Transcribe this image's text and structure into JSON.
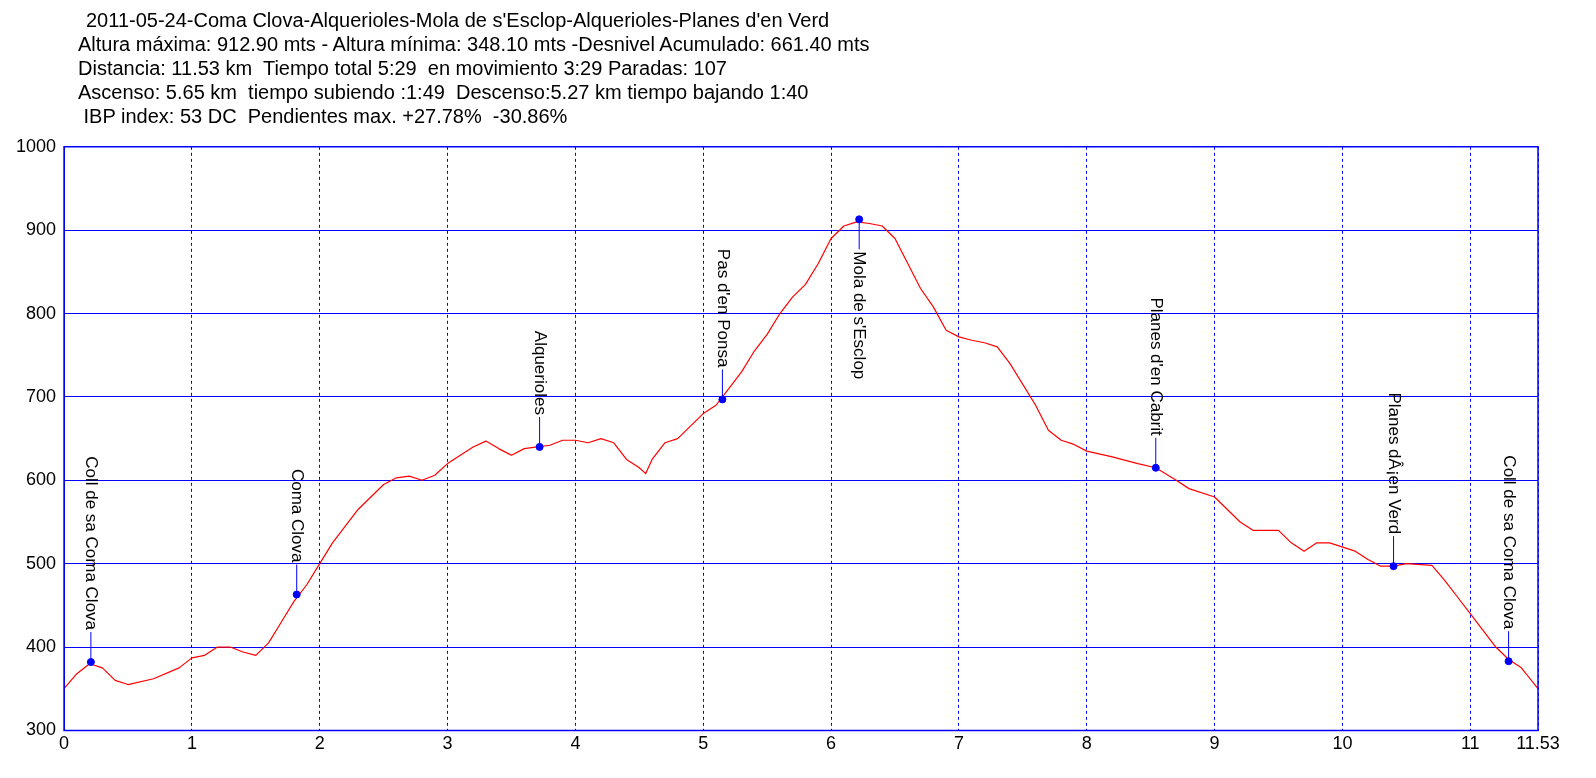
{
  "chart_data": {
    "type": "line",
    "title": "2011-05-24-Coma Clova-Alquerioles-Mola de s'Esclop-Alquerioles-Planes d'en Verd",
    "subtitle": "Altura máxima: 912.90 mts - Altura mínima: 348.10 mts -Desnivel Acumulado: 661.40 mts\nDistancia: 11.53 km  Tiempo total 5:29  en movimiento 3:29 Paradas: 107\nAscenso: 5.65 km  tiempo subiendo :1:49  Descenso:5.27 km tiempo bajando 1:40\n IBP index: 53 DC  Pendientes max. +27.78%  -30.86%",
    "series": [
      {
        "type": "line",
        "color": "#ff0000",
        "x": [
          0,
          0.1,
          0.2,
          0.3,
          0.4,
          0.5,
          0.7,
          0.9,
          1.0,
          1.1,
          1.2,
          1.3,
          1.4,
          1.5,
          1.6,
          1.7,
          1.8,
          1.9,
          2.0,
          2.1,
          2.2,
          2.3,
          2.4,
          2.5,
          2.6,
          2.7,
          2.8,
          2.9,
          3.0,
          3.1,
          3.2,
          3.3,
          3.4,
          3.5,
          3.6,
          3.7,
          3.8,
          3.9,
          4.0,
          4.1,
          4.2,
          4.3,
          4.4,
          4.5,
          4.55,
          4.6,
          4.7,
          4.8,
          4.9,
          5.0,
          5.1,
          5.2,
          5.3,
          5.4,
          5.5,
          5.6,
          5.7,
          5.8,
          5.9,
          6.0,
          6.1,
          6.2,
          6.3,
          6.4,
          6.5,
          6.6,
          6.7,
          6.8,
          6.9,
          7.0,
          7.1,
          7.2,
          7.3,
          7.4,
          7.5,
          7.6,
          7.7,
          7.8,
          7.9,
          8.0,
          8.2,
          8.4,
          8.54,
          8.7,
          8.8,
          9.0,
          9.1,
          9.2,
          9.3,
          9.5,
          9.6,
          9.7,
          9.8,
          9.9,
          10.1,
          10.2,
          10.3,
          10.4,
          10.5,
          10.7,
          10.8,
          10.9,
          11.0,
          11.1,
          11.2,
          11.3,
          11.4,
          11.53
        ],
        "values": [
          350,
          368,
          380,
          375,
          360,
          355,
          362,
          375,
          387,
          390,
          400,
          400,
          394,
          390,
          405,
          430,
          455,
          475,
          500,
          525,
          545,
          565,
          580,
          595,
          603,
          605,
          600,
          606,
          620,
          630,
          640,
          647,
          638,
          630,
          638,
          640,
          642,
          648,
          648,
          645,
          650,
          645,
          625,
          615,
          608,
          625,
          645,
          650,
          665,
          680,
          690,
          710,
          730,
          755,
          775,
          800,
          820,
          835,
          860,
          890,
          905,
          910,
          908,
          905,
          890,
          860,
          830,
          808,
          780,
          772,
          768,
          765,
          760,
          740,
          715,
          690,
          660,
          648,
          643,
          635,
          628,
          620,
          615,
          600,
          590,
          580,
          565,
          550,
          540,
          540,
          525,
          515,
          525,
          525,
          515,
          505,
          497,
          497,
          500,
          498,
          480,
          460,
          440,
          420,
          400,
          385,
          375,
          350
        ]
      },
      {
        "type": "scatter",
        "color": "#0000ff",
        "marker": "circle",
        "x": [
          0.21,
          1.82,
          3.72,
          5.15,
          6.22,
          8.54,
          10.4,
          11.3
        ],
        "values": [
          382,
          463,
          640,
          697,
          913,
          615,
          497,
          383
        ]
      }
    ],
    "annotations": [
      {
        "text": "Coll de sa Coma Clova",
        "x": 0.21,
        "y": 382
      },
      {
        "text": "Coma Clova",
        "x": 1.82,
        "y": 463
      },
      {
        "text": "Alquerioles",
        "x": 3.72,
        "y": 640
      },
      {
        "text": "Pas d'en Ponsa",
        "x": 5.15,
        "y": 697
      },
      {
        "text": "Mola de s'Esclop",
        "x": 6.22,
        "y": 913
      },
      {
        "text": "Planes d'en Cabrit",
        "x": 8.54,
        "y": 615
      },
      {
        "text": "Planes dÂ¡en Verd",
        "x": 10.4,
        "y": 497
      },
      {
        "text": "Coll de sa Coma Clova",
        "x": 11.3,
        "y": 383
      }
    ],
    "xlim": [
      0,
      11.53
    ],
    "xticks": [
      0,
      1,
      2,
      3,
      4,
      5,
      6,
      7,
      8,
      9,
      10,
      11,
      11.53
    ],
    "ylim": [
      300,
      1000
    ],
    "yticks": [
      300,
      400,
      500,
      600,
      700,
      800,
      900,
      1000
    ],
    "grid": true,
    "legend": false,
    "line_style": "solid"
  }
}
